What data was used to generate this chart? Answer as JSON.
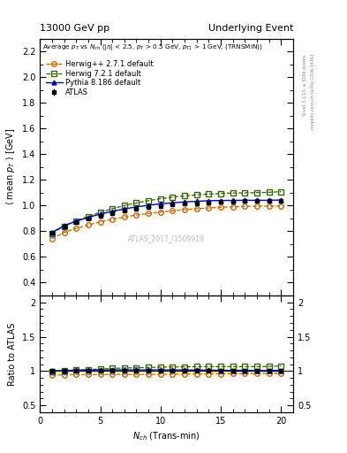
{
  "title_left": "13000 GeV pp",
  "title_right": "Underlying Event",
  "plot_title": "Average $p_T$ vs $N_{ch}$ ($|\\eta|$ < 2.5, $p_T$ > 0.5 GeV, $p_{T1}$ > 1 GeV, (TRNSMIN))",
  "xlabel": "$N_{ch}$ (Trans-min)",
  "ylabel_main": "$\\langle$ mean $p_T$ $\\rangle$ [GeV]",
  "ylabel_ratio": "Ratio to ATLAS",
  "watermark": "ATLAS_2017_I1509919",
  "right_label": "mcplots.cern.ch [arXiv:1306.3436]",
  "right_label2": "Rivet 3.1.10, ≥ 500k events",
  "ylim_main": [
    0.3,
    2.3
  ],
  "ylim_ratio": [
    0.4,
    2.1
  ],
  "xlim": [
    0,
    21
  ],
  "atlas_x": [
    1,
    2,
    3,
    4,
    5,
    6,
    7,
    8,
    9,
    10,
    11,
    12,
    13,
    14,
    15,
    16,
    17,
    18,
    19,
    20
  ],
  "atlas_y": [
    0.788,
    0.837,
    0.868,
    0.896,
    0.921,
    0.94,
    0.958,
    0.974,
    0.987,
    0.997,
    1.006,
    1.013,
    1.019,
    1.024,
    1.028,
    1.031,
    1.033,
    1.034,
    1.034,
    1.033
  ],
  "atlas_yerr": [
    0.015,
    0.01,
    0.008,
    0.007,
    0.006,
    0.006,
    0.005,
    0.005,
    0.005,
    0.005,
    0.005,
    0.005,
    0.006,
    0.006,
    0.007,
    0.008,
    0.009,
    0.01,
    0.012,
    0.015
  ],
  "herwigpp_y": [
    0.742,
    0.79,
    0.822,
    0.848,
    0.872,
    0.893,
    0.91,
    0.926,
    0.938,
    0.949,
    0.959,
    0.968,
    0.975,
    0.981,
    0.986,
    0.99,
    0.993,
    0.995,
    0.996,
    0.995
  ],
  "herwig7_y": [
    0.782,
    0.84,
    0.88,
    0.915,
    0.947,
    0.975,
    1.0,
    1.02,
    1.038,
    1.053,
    1.065,
    1.075,
    1.083,
    1.089,
    1.094,
    1.097,
    1.099,
    1.1,
    1.103,
    1.108
  ],
  "pythia_y": [
    0.79,
    0.843,
    0.878,
    0.908,
    0.933,
    0.955,
    0.973,
    0.989,
    1.002,
    1.013,
    1.021,
    1.028,
    1.033,
    1.037,
    1.039,
    1.04,
    1.041,
    1.04,
    1.041,
    1.043
  ],
  "atlas_color": "#000000",
  "herwigpp_color": "#cc6600",
  "herwig7_color": "#336600",
  "pythia_color": "#0000cc",
  "atlas_band_color": "#ffff00",
  "pythia_band_color": "#aabb88",
  "band_alpha_atlas": 0.7,
  "band_alpha_pythia": 0.5
}
